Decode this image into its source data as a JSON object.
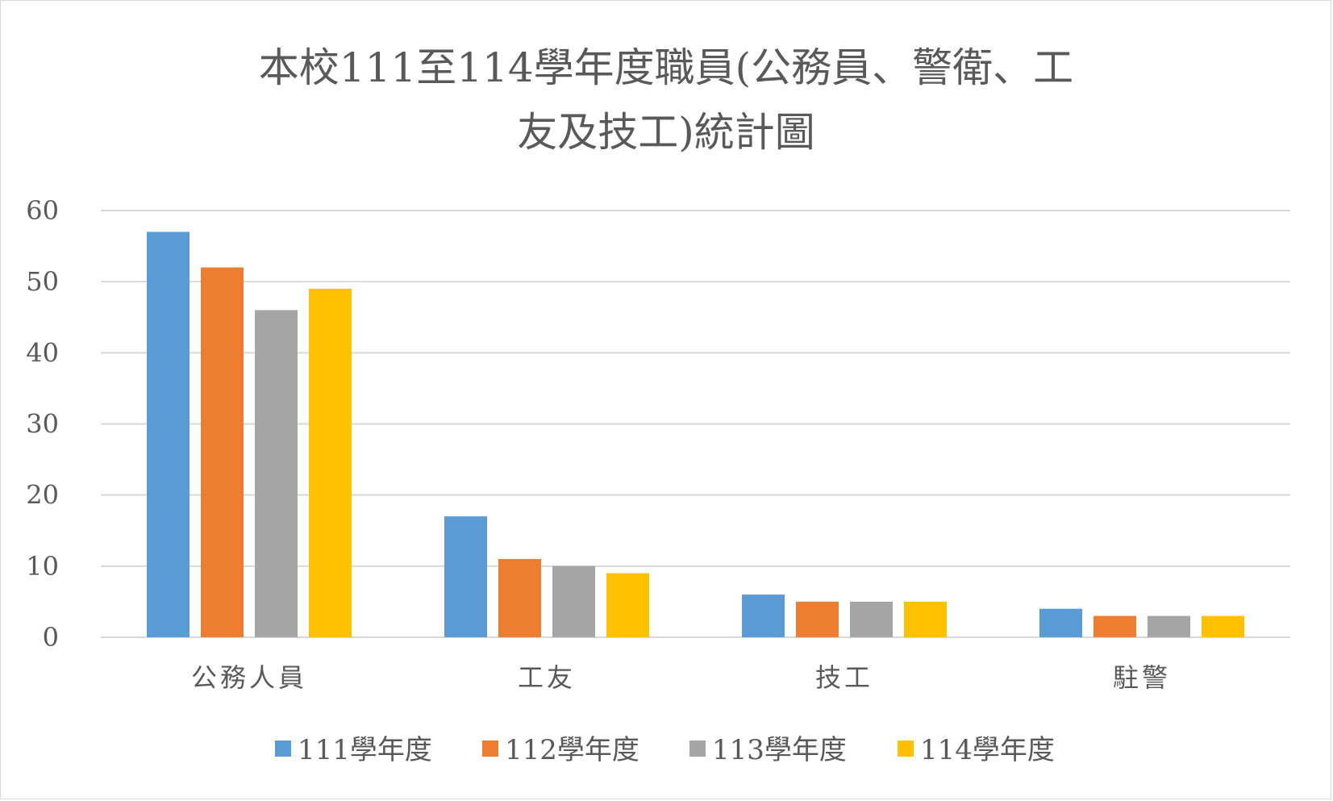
{
  "chart_data": {
    "type": "bar",
    "title_lines": [
      "本校111至114學年度職員(公務員、警衛、工",
      "友及技工)統計圖"
    ],
    "categories": [
      "公務人員",
      "工友",
      "技工",
      "駐警"
    ],
    "series": [
      {
        "name": "111學年度",
        "color": "#5b9bd5",
        "values": [
          57,
          17,
          6,
          4
        ]
      },
      {
        "name": "112學年度",
        "color": "#ed7d31",
        "values": [
          52,
          11,
          5,
          3
        ]
      },
      {
        "name": "113學年度",
        "color": "#a5a5a5",
        "values": [
          46,
          10,
          5,
          3
        ]
      },
      {
        "name": "114學年度",
        "color": "#ffc000",
        "values": [
          49,
          9,
          5,
          3
        ]
      }
    ],
    "ylim": [
      0,
      60
    ],
    "yticks": [
      "0",
      "10",
      "20",
      "30",
      "40",
      "50",
      "60"
    ],
    "grid": true,
    "legend_position": "bottom"
  }
}
